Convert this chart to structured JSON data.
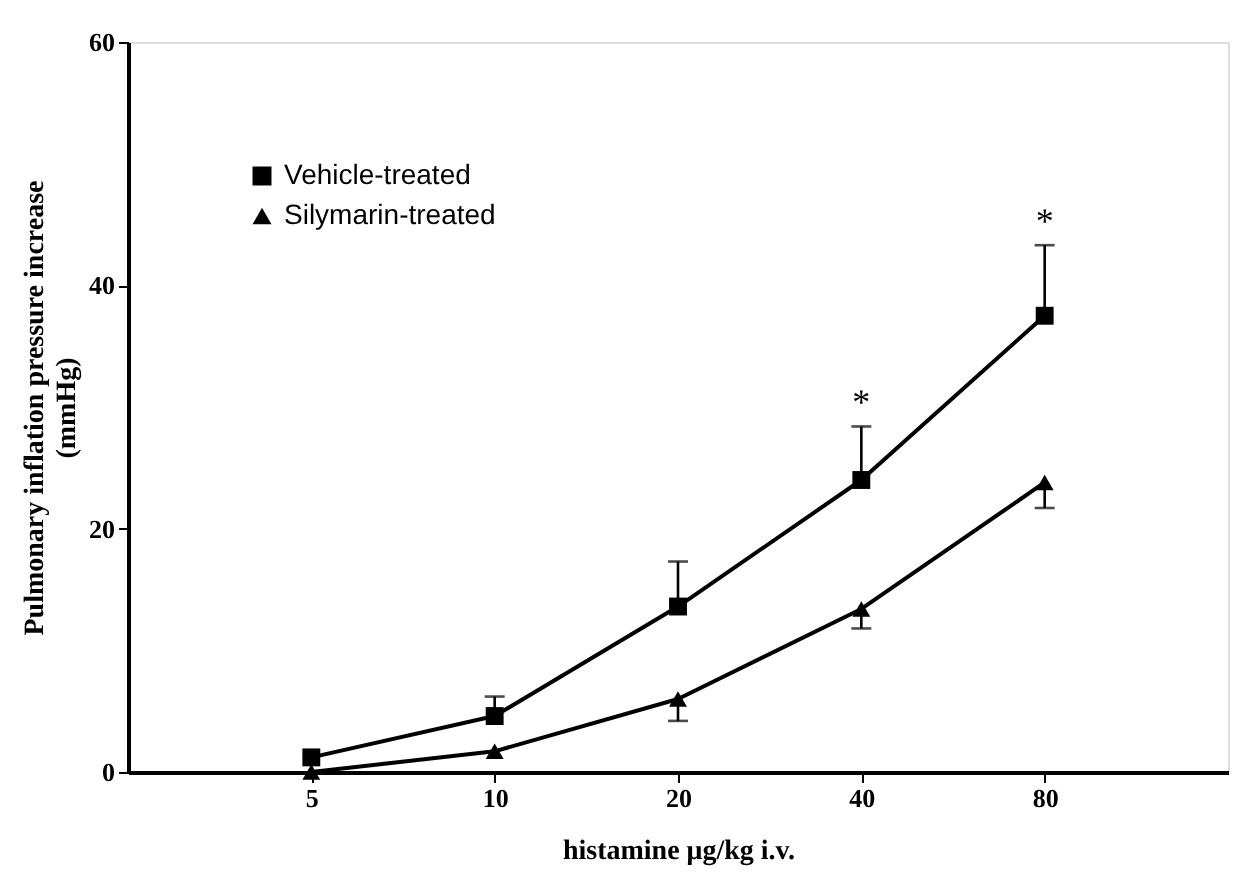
{
  "chart_data": {
    "type": "line",
    "xlabel": "histamine  μg/kg i.v.",
    "ylabel": "Pulmonary inflation pressure  increase\n(mmHg)",
    "categories": [
      "5",
      "10",
      "20",
      "40",
      "80"
    ],
    "series": [
      {
        "name": "Vehicle-treated",
        "color": "#000000",
        "marker": "square",
        "values": [
          1.2,
          4.6,
          13.6,
          24.0,
          37.5
        ],
        "errors": [
          null,
          [
            4.6,
            6.2
          ],
          [
            13.6,
            17.3
          ],
          [
            24.0,
            28.4
          ],
          [
            37.5,
            43.3
          ]
        ]
      },
      {
        "name": "Silymarin-treated",
        "color": "#000000",
        "marker": "triangle",
        "values": [
          0,
          1.7,
          6.0,
          13.4,
          23.8
        ],
        "errors": [
          null,
          null,
          [
            4.2,
            6.0
          ],
          [
            11.8,
            13.4
          ],
          [
            21.7,
            23.8
          ]
        ]
      }
    ],
    "annotations": [
      "*",
      "*"
    ],
    "ylim": [
      0,
      60
    ],
    "yticks": [
      0,
      20,
      40,
      60
    ],
    "grid": false,
    "legend": "top left",
    "line_style": "solid"
  }
}
